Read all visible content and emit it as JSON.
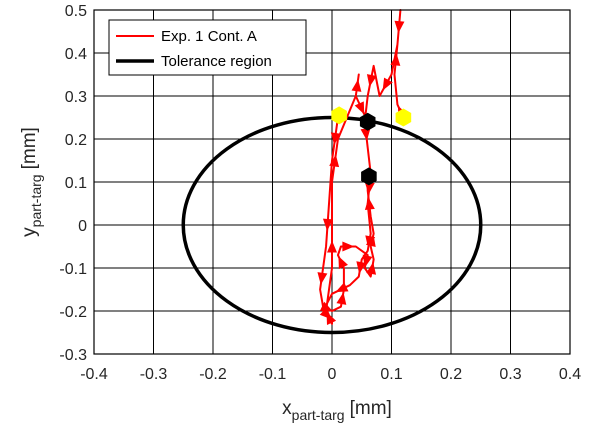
{
  "chart_data": {
    "type": "line",
    "xlabel": "x",
    "xlabel_sub": "part-targ",
    "xlabel_unit": "[mm]",
    "ylabel": "y",
    "ylabel_sub": "part-targ",
    "ylabel_unit": "[mm]",
    "xlim": [
      -0.4,
      0.4
    ],
    "ylim": [
      -0.3,
      0.5
    ],
    "xticks": [
      -0.4,
      -0.3,
      -0.2,
      -0.1,
      0,
      0.1,
      0.2,
      0.3,
      0.4
    ],
    "xtick_labels": [
      "-0.4",
      "-0.3",
      "-0.2",
      "-0.1",
      "0",
      "0.1",
      "0.2",
      "0.3",
      "0.4"
    ],
    "yticks": [
      -0.3,
      -0.2,
      -0.1,
      0,
      0.1,
      0.2,
      0.3,
      0.4,
      0.5
    ],
    "ytick_labels": [
      "-0.3",
      "-0.2",
      "-0.1",
      "0",
      "0.1",
      "0.2",
      "0.3",
      "0.4",
      "0.5"
    ],
    "grid": true,
    "legend_position": "top-left",
    "colors": {
      "trajectory": "#ff0000",
      "tolerance": "#000000",
      "start_marker": "#ffff00",
      "end_marker": "#000000"
    },
    "series": [
      {
        "name": "Exp. 1 Cont. A",
        "path1": [
          [
            0.01,
            0.25
          ],
          [
            0.0,
            0.15
          ],
          [
            -0.005,
            0.05
          ],
          [
            -0.01,
            -0.05
          ],
          [
            -0.015,
            -0.1
          ],
          [
            -0.02,
            -0.15
          ],
          [
            -0.015,
            -0.19
          ],
          [
            0.0,
            -0.2
          ],
          [
            0.015,
            -0.19
          ],
          [
            0.02,
            -0.15
          ],
          [
            0.02,
            -0.1
          ],
          [
            0.01,
            -0.07
          ],
          [
            0.015,
            -0.05
          ],
          [
            0.04,
            -0.05
          ],
          [
            0.06,
            -0.07
          ],
          [
            0.055,
            -0.1
          ],
          [
            0.065,
            -0.12
          ],
          [
            0.07,
            -0.08
          ],
          [
            0.065,
            -0.05
          ],
          [
            0.07,
            -0.02
          ],
          [
            0.065,
            0.02
          ],
          [
            0.06,
            0.08
          ],
          [
            0.06,
            0.11
          ]
        ],
        "path2": [
          [
            0.12,
            0.25
          ],
          [
            0.11,
            0.28
          ],
          [
            0.105,
            0.35
          ],
          [
            0.11,
            0.42
          ],
          [
            0.115,
            0.5
          ],
          [
            0.11,
            0.42
          ],
          [
            0.1,
            0.35
          ],
          [
            0.08,
            0.3
          ],
          [
            0.07,
            0.37
          ],
          [
            0.06,
            0.3
          ],
          [
            0.055,
            0.24
          ],
          [
            0.06,
            0.18
          ],
          [
            0.065,
            0.12
          ],
          [
            0.06,
            0.05
          ],
          [
            0.065,
            -0.02
          ],
          [
            0.06,
            -0.06
          ],
          [
            0.05,
            -0.08
          ],
          [
            0.045,
            -0.12
          ],
          [
            0.03,
            -0.14
          ],
          [
            0.0,
            -0.16
          ],
          [
            -0.015,
            -0.2
          ],
          [
            0.0,
            -0.22
          ],
          [
            0.0,
            -0.23
          ],
          [
            -0.01,
            -0.2
          ],
          [
            0.0,
            -0.1
          ],
          [
            0.0,
            0.0
          ],
          [
            0.0,
            0.1
          ],
          [
            0.01,
            0.2
          ],
          [
            0.04,
            0.3
          ],
          [
            0.045,
            0.35
          ],
          [
            0.04,
            0.3
          ],
          [
            0.06,
            0.24
          ]
        ]
      },
      {
        "name": "Tolerance region",
        "center": [
          0,
          0
        ],
        "radius": 0.25
      }
    ],
    "start_points": [
      [
        0.012,
        0.255
      ],
      [
        0.12,
        0.25
      ]
    ],
    "end_points": [
      [
        0.06,
        0.24
      ],
      [
        0.062,
        0.113
      ]
    ]
  }
}
